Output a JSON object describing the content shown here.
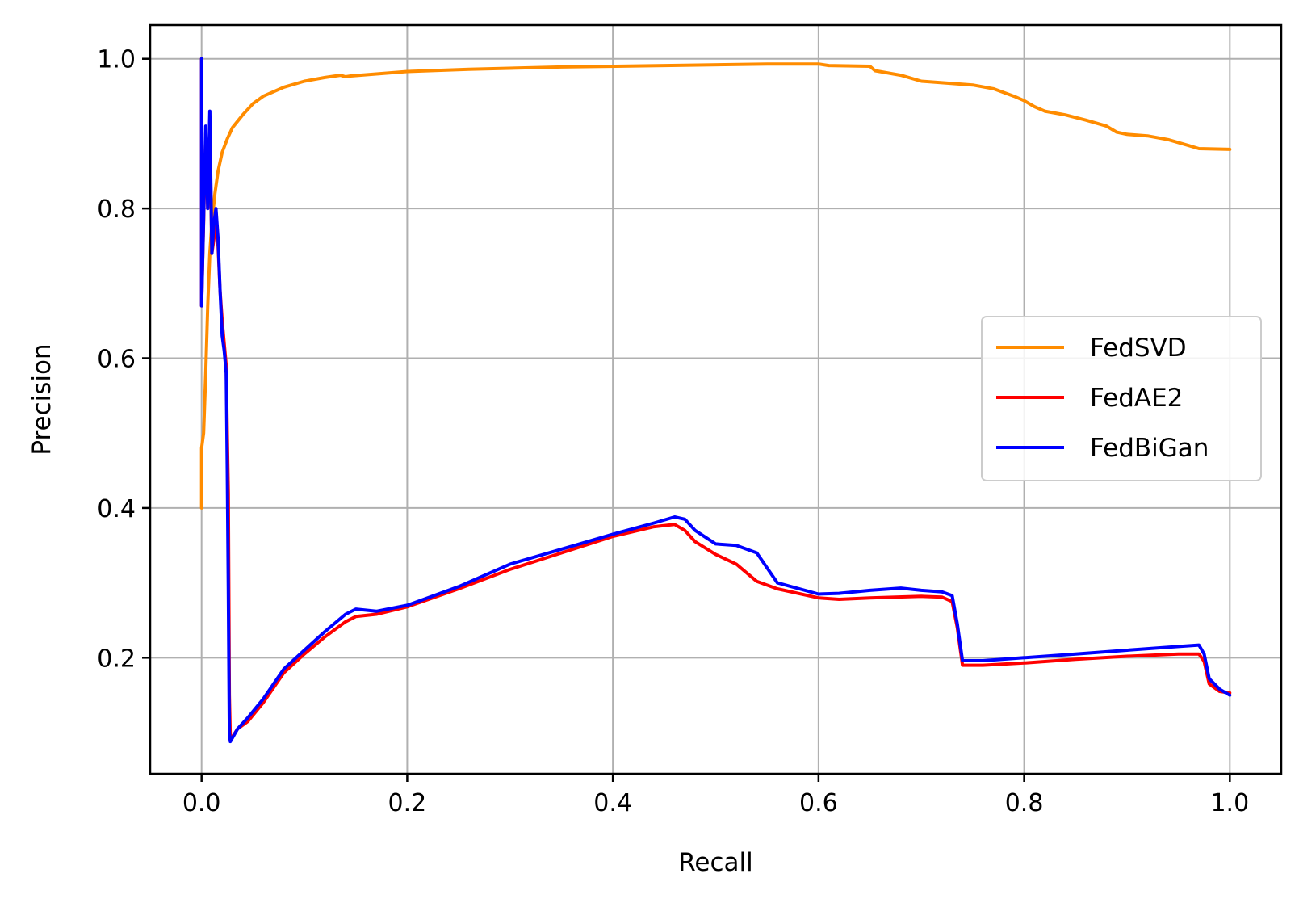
{
  "chart_data": {
    "type": "line",
    "title": "",
    "xlabel": "Recall",
    "ylabel": "Precision",
    "xlim": [
      -0.05,
      1.05
    ],
    "ylim": [
      0.045,
      1.045
    ],
    "xticks": [
      0.0,
      0.2,
      0.4,
      0.6,
      0.8,
      1.0
    ],
    "yticks": [
      0.2,
      0.4,
      0.6,
      0.8,
      1.0
    ],
    "xtick_labels": [
      "0.0",
      "0.2",
      "0.4",
      "0.6",
      "0.8",
      "1.0"
    ],
    "ytick_labels": [
      "0.2",
      "0.4",
      "0.6",
      "0.8",
      "1.0"
    ],
    "grid": true,
    "legend_position": "center-right",
    "series": [
      {
        "name": "FedSVD",
        "color": "#ff8c00",
        "points": [
          [
            0.0,
            0.4
          ],
          [
            0.0,
            0.48
          ],
          [
            0.002,
            0.5
          ],
          [
            0.004,
            0.58
          ],
          [
            0.006,
            0.67
          ],
          [
            0.008,
            0.74
          ],
          [
            0.01,
            0.78
          ],
          [
            0.013,
            0.82
          ],
          [
            0.016,
            0.85
          ],
          [
            0.02,
            0.875
          ],
          [
            0.025,
            0.893
          ],
          [
            0.03,
            0.908
          ],
          [
            0.04,
            0.925
          ],
          [
            0.05,
            0.94
          ],
          [
            0.06,
            0.95
          ],
          [
            0.08,
            0.962
          ],
          [
            0.1,
            0.97
          ],
          [
            0.12,
            0.975
          ],
          [
            0.135,
            0.978
          ],
          [
            0.14,
            0.976
          ],
          [
            0.145,
            0.977
          ],
          [
            0.2,
            0.983
          ],
          [
            0.26,
            0.986
          ],
          [
            0.35,
            0.989
          ],
          [
            0.45,
            0.991
          ],
          [
            0.55,
            0.993
          ],
          [
            0.6,
            0.993
          ],
          [
            0.61,
            0.991
          ],
          [
            0.65,
            0.99
          ],
          [
            0.655,
            0.984
          ],
          [
            0.68,
            0.978
          ],
          [
            0.7,
            0.97
          ],
          [
            0.72,
            0.968
          ],
          [
            0.75,
            0.965
          ],
          [
            0.77,
            0.96
          ],
          [
            0.79,
            0.95
          ],
          [
            0.8,
            0.944
          ],
          [
            0.81,
            0.936
          ],
          [
            0.82,
            0.93
          ],
          [
            0.84,
            0.925
          ],
          [
            0.86,
            0.918
          ],
          [
            0.88,
            0.91
          ],
          [
            0.89,
            0.902
          ],
          [
            0.9,
            0.899
          ],
          [
            0.92,
            0.897
          ],
          [
            0.94,
            0.892
          ],
          [
            0.96,
            0.884
          ],
          [
            0.97,
            0.88
          ],
          [
            1.0,
            0.879
          ]
        ]
      },
      {
        "name": "FedAE2",
        "color": "#ff0000",
        "points": [
          [
            0.0,
            1.0
          ],
          [
            0.0,
            0.67
          ],
          [
            0.004,
            0.9
          ],
          [
            0.006,
            0.8
          ],
          [
            0.008,
            0.91
          ],
          [
            0.01,
            0.74
          ],
          [
            0.012,
            0.76
          ],
          [
            0.014,
            0.79
          ],
          [
            0.016,
            0.75
          ],
          [
            0.018,
            0.69
          ],
          [
            0.02,
            0.65
          ],
          [
            0.022,
            0.62
          ],
          [
            0.024,
            0.59
          ],
          [
            0.025,
            0.5
          ],
          [
            0.026,
            0.42
          ],
          [
            0.027,
            0.15
          ],
          [
            0.028,
            0.09
          ],
          [
            0.035,
            0.105
          ],
          [
            0.045,
            0.115
          ],
          [
            0.06,
            0.14
          ],
          [
            0.08,
            0.18
          ],
          [
            0.1,
            0.205
          ],
          [
            0.12,
            0.228
          ],
          [
            0.14,
            0.248
          ],
          [
            0.15,
            0.255
          ],
          [
            0.17,
            0.258
          ],
          [
            0.2,
            0.268
          ],
          [
            0.25,
            0.292
          ],
          [
            0.3,
            0.318
          ],
          [
            0.35,
            0.34
          ],
          [
            0.4,
            0.362
          ],
          [
            0.44,
            0.375
          ],
          [
            0.46,
            0.378
          ],
          [
            0.47,
            0.37
          ],
          [
            0.48,
            0.355
          ],
          [
            0.5,
            0.338
          ],
          [
            0.52,
            0.325
          ],
          [
            0.54,
            0.302
          ],
          [
            0.56,
            0.292
          ],
          [
            0.6,
            0.28
          ],
          [
            0.62,
            0.278
          ],
          [
            0.65,
            0.28
          ],
          [
            0.7,
            0.282
          ],
          [
            0.72,
            0.281
          ],
          [
            0.73,
            0.275
          ],
          [
            0.735,
            0.24
          ],
          [
            0.74,
            0.19
          ],
          [
            0.76,
            0.19
          ],
          [
            0.8,
            0.193
          ],
          [
            0.85,
            0.198
          ],
          [
            0.9,
            0.202
          ],
          [
            0.95,
            0.205
          ],
          [
            0.97,
            0.205
          ],
          [
            0.975,
            0.195
          ],
          [
            0.98,
            0.165
          ],
          [
            0.99,
            0.155
          ],
          [
            1.0,
            0.153
          ]
        ]
      },
      {
        "name": "FedBiGan",
        "color": "#0000ff",
        "points": [
          [
            0.0,
            1.0
          ],
          [
            0.0,
            0.67
          ],
          [
            0.004,
            0.91
          ],
          [
            0.006,
            0.8
          ],
          [
            0.008,
            0.93
          ],
          [
            0.01,
            0.74
          ],
          [
            0.012,
            0.78
          ],
          [
            0.014,
            0.8
          ],
          [
            0.016,
            0.76
          ],
          [
            0.018,
            0.69
          ],
          [
            0.02,
            0.63
          ],
          [
            0.022,
            0.61
          ],
          [
            0.024,
            0.58
          ],
          [
            0.025,
            0.45
          ],
          [
            0.026,
            0.29
          ],
          [
            0.027,
            0.1
          ],
          [
            0.028,
            0.088
          ],
          [
            0.035,
            0.105
          ],
          [
            0.045,
            0.12
          ],
          [
            0.06,
            0.145
          ],
          [
            0.08,
            0.185
          ],
          [
            0.1,
            0.21
          ],
          [
            0.12,
            0.235
          ],
          [
            0.14,
            0.258
          ],
          [
            0.15,
            0.265
          ],
          [
            0.17,
            0.262
          ],
          [
            0.2,
            0.27
          ],
          [
            0.25,
            0.295
          ],
          [
            0.3,
            0.325
          ],
          [
            0.35,
            0.345
          ],
          [
            0.4,
            0.365
          ],
          [
            0.44,
            0.38
          ],
          [
            0.46,
            0.388
          ],
          [
            0.47,
            0.385
          ],
          [
            0.48,
            0.37
          ],
          [
            0.5,
            0.352
          ],
          [
            0.52,
            0.35
          ],
          [
            0.54,
            0.34
          ],
          [
            0.56,
            0.3
          ],
          [
            0.6,
            0.285
          ],
          [
            0.62,
            0.286
          ],
          [
            0.65,
            0.29
          ],
          [
            0.68,
            0.293
          ],
          [
            0.7,
            0.29
          ],
          [
            0.72,
            0.288
          ],
          [
            0.73,
            0.283
          ],
          [
            0.735,
            0.245
          ],
          [
            0.74,
            0.196
          ],
          [
            0.76,
            0.196
          ],
          [
            0.8,
            0.2
          ],
          [
            0.85,
            0.205
          ],
          [
            0.9,
            0.21
          ],
          [
            0.95,
            0.215
          ],
          [
            0.97,
            0.217
          ],
          [
            0.975,
            0.205
          ],
          [
            0.98,
            0.172
          ],
          [
            0.99,
            0.158
          ],
          [
            1.0,
            0.15
          ]
        ]
      }
    ]
  }
}
